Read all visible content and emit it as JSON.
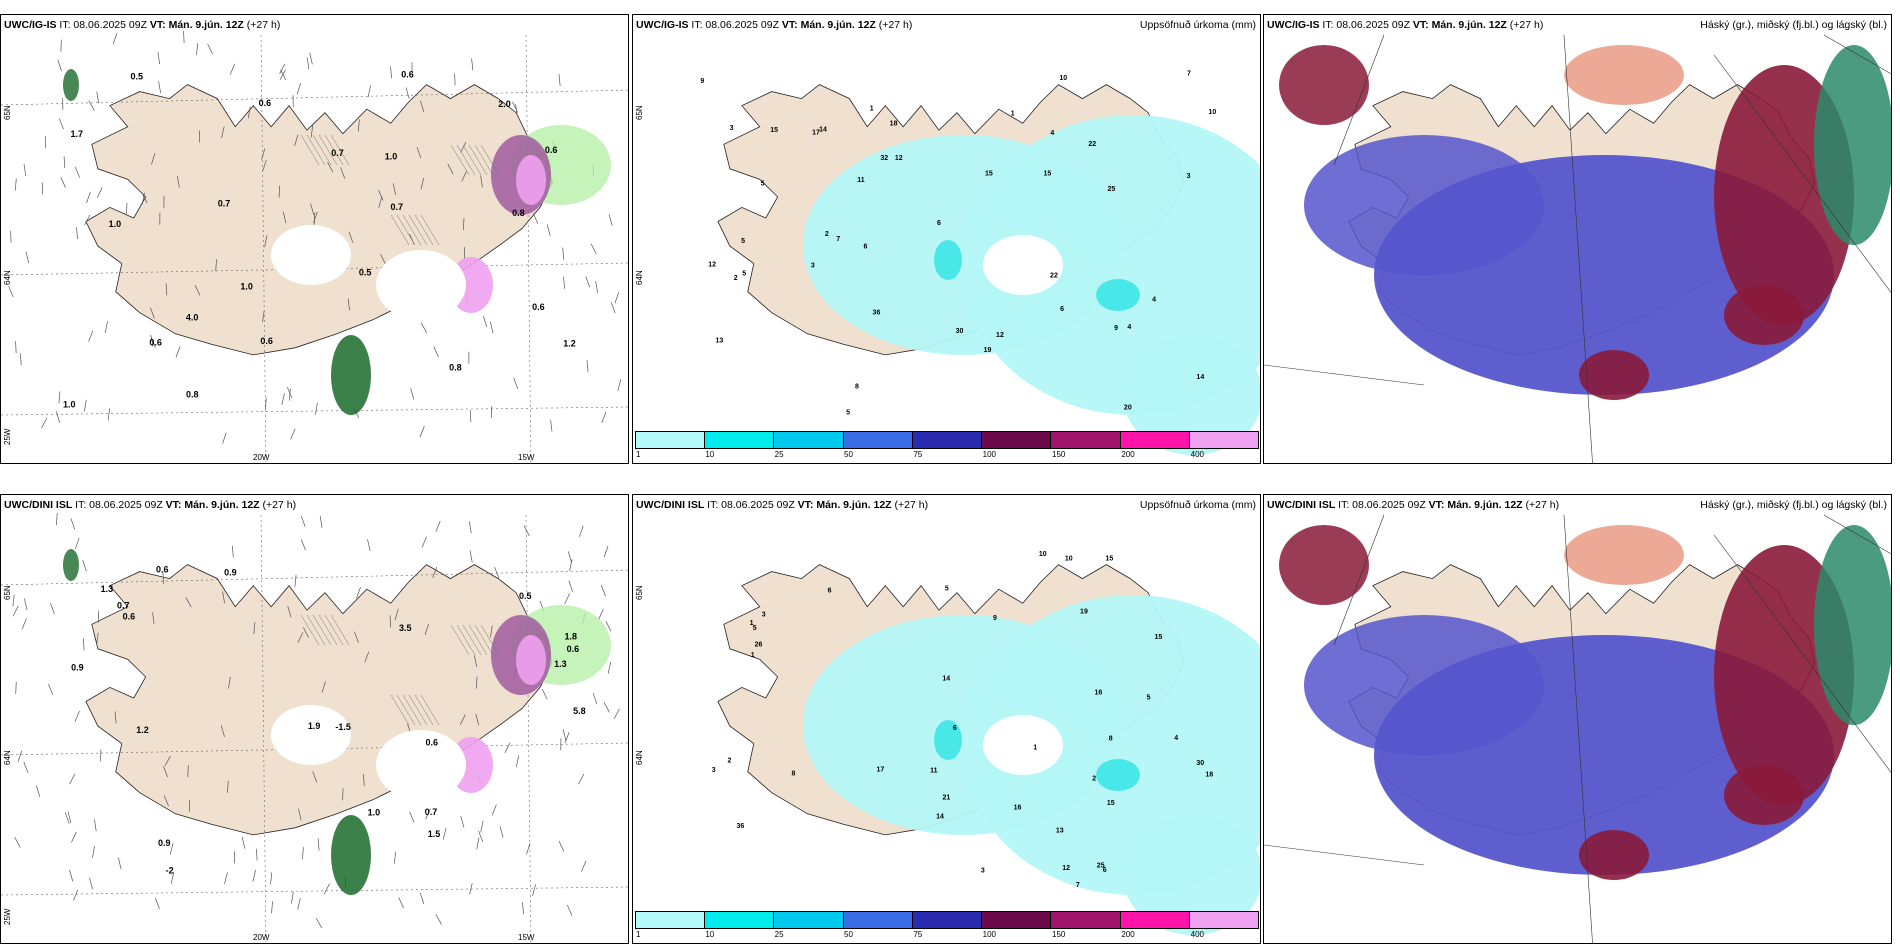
{
  "colorbar": {
    "ticks": [
      "1",
      "10",
      "25",
      "50",
      "75",
      "100",
      "150",
      "200",
      "400"
    ],
    "colors": [
      "#b4fafa",
      "#00ebeb",
      "#00c8ee",
      "#3a6ee8",
      "#2a2ab0",
      "#6a0a4a",
      "#a0146e",
      "#ff14aa",
      "#f0a0f0"
    ]
  },
  "colors": {
    "land": "#efe0cf",
    "precip_light": "#b4f7f7",
    "precip_med": "#3de6e6",
    "cloud_low": "#5555cc",
    "cloud_mid": "#8a1a3a",
    "cloud_high": "#e07050",
    "green_light": "#b8f0a8",
    "green_dark": "#1a6a2a",
    "purple": "#a05aa0",
    "pink": "#f0a0f0"
  },
  "rows": [
    {
      "panels": [
        {
          "type": "wind",
          "model_bold": "UWC/IG-IS",
          "it_text": " IT: 08.06.2025 09Z ",
          "vt_bold": "VT: Mán. 9.jún. 12Z",
          "lead_text": " (+27 h)",
          "right_title": "",
          "lon_labels": [
            "20W",
            "15W"
          ],
          "lat_labels": [
            "65N",
            "64N",
            "25W"
          ],
          "values": [
            "1.2",
            "0.6",
            "0.7",
            "0.6",
            "0.8",
            "0.6",
            "0.6",
            "0.5",
            "1.0",
            "1.0",
            "0.6",
            "0.7",
            "1.0",
            "1.0",
            "0.8",
            "4.0",
            "0.7",
            "2.0",
            "0.5",
            "0.8",
            "0.6",
            "1.7"
          ]
        },
        {
          "type": "precip",
          "model_bold": "UWC/IG-IS",
          "it_text": " IT: 08.06.2025 09Z ",
          "vt_bold": "VT: Mán. 9.jún. 12Z",
          "lead_text": " (+27 h)",
          "right_title": "Uppsöfnuð úrkoma (mm)",
          "lat_labels": [
            "65N",
            "64N"
          ],
          "values": [
            "5",
            "9",
            "3",
            "1",
            "2",
            "5",
            "12",
            "6",
            "3",
            "4",
            "10",
            "5",
            "30",
            "12",
            "14",
            "17",
            "15",
            "25",
            "12",
            "8",
            "7",
            "11",
            "20",
            "22",
            "36",
            "19",
            "15",
            "9",
            "4",
            "22",
            "13",
            "10",
            "6",
            "18",
            "32",
            "14",
            "15",
            "7",
            "1",
            "4",
            "3",
            "5",
            "6",
            "2"
          ]
        },
        {
          "type": "cloud",
          "model_bold": "UWC/IG-IS",
          "it_text": " IT: 08.06.2025 09Z ",
          "vt_bold": "VT: Mán. 9.jún. 12Z",
          "lead_text": " (+27 h)",
          "right_title": "Háský (gr.), miðský (fj.bl.) og lágský (bl.)"
        }
      ]
    },
    {
      "panels": [
        {
          "type": "wind",
          "model_bold": "UWC/DINI ISL",
          "it_text": " IT: 08.06.2025 09Z ",
          "vt_bold": "VT: Mán. 9.jún. 12Z",
          "lead_text": " (+27 h)",
          "right_title": "",
          "lon_labels": [
            "20W",
            "15W"
          ],
          "lat_labels": [
            "65N",
            "64N",
            "25W"
          ],
          "values": [
            "0.9",
            "1.2",
            "0.6",
            "0.7",
            "0.6",
            "0.9",
            "0.9",
            "-1.5",
            "-2",
            "1.0",
            "1.5",
            "1.8",
            "3.5",
            "5.8",
            "1.3",
            "0.6",
            "0.7",
            "1.9",
            "1.3",
            "0.6",
            "0.5"
          ]
        },
        {
          "type": "precip",
          "model_bold": "UWC/DINI ISL",
          "it_text": " IT: 08.06.2025 09Z ",
          "vt_bold": "VT: Mán. 9.jún. 12Z",
          "lead_text": " (+27 h)",
          "right_title": "Uppsöfnuð úrkoma (mm)",
          "lat_labels": [
            "65N",
            "64N"
          ],
          "values": [
            "1",
            "2",
            "6",
            "3",
            "6",
            "10",
            "14",
            "9",
            "12",
            "5",
            "14",
            "30",
            "21",
            "15",
            "16",
            "8",
            "15",
            "11",
            "25",
            "36",
            "17",
            "19",
            "10",
            "15",
            "3",
            "5",
            "26",
            "18",
            "16",
            "1",
            "4",
            "3",
            "7",
            "8",
            "6",
            "13",
            "1",
            "2",
            "5"
          ]
        },
        {
          "type": "cloud",
          "model_bold": "UWC/DINI ISL",
          "it_text": " IT: 08.06.2025 09Z ",
          "vt_bold": "VT: Mán. 9.jún. 12Z",
          "lead_text": " (+27 h)",
          "right_title": "Háský (gr.), miðský (fj.bl.) og lágský (bl.)"
        }
      ]
    }
  ]
}
